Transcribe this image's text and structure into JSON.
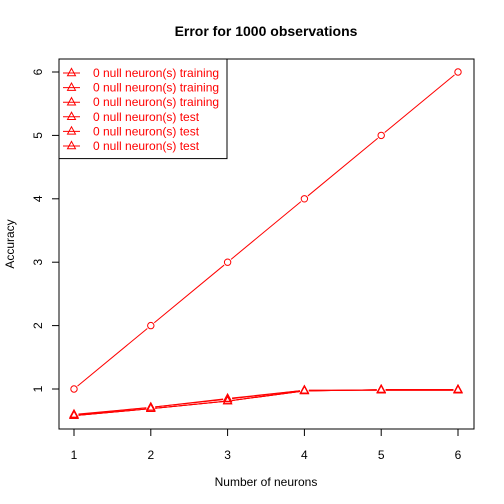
{
  "chart_data": {
    "type": "line",
    "title": "Error for 1000 observations",
    "xlabel": "Number of neurons",
    "ylabel": "Accuracy",
    "x": [
      1,
      2,
      3,
      4,
      5,
      6
    ],
    "xlim": [
      1,
      6
    ],
    "ylim": [
      0.6,
      6
    ],
    "xticks": [
      "1",
      "2",
      "3",
      "4",
      "5",
      "6"
    ],
    "yticks": [
      "1",
      "2",
      "3",
      "4",
      "5",
      "6"
    ],
    "grid": false,
    "legend_position": "top-left",
    "color": "#ff0000",
    "series": [
      {
        "name": "0 null neuron(s) training",
        "marker": "circle",
        "values": [
          1,
          2,
          3,
          4,
          5,
          6
        ]
      },
      {
        "name": "0 null neuron(s) training",
        "marker": "triangle",
        "values": [
          0.6,
          0.71,
          0.85,
          0.98,
          0.98,
          0.98
        ]
      },
      {
        "name": "0 null neuron(s) training",
        "marker": "triangle",
        "values": [
          0.59,
          0.71,
          0.84,
          0.98,
          0.98,
          0.98
        ]
      },
      {
        "name": "0 null neuron(s) test",
        "marker": "triangle",
        "values": [
          0.58,
          0.69,
          0.81,
          0.97,
          0.99,
          0.99
        ]
      },
      {
        "name": "0 null neuron(s) test",
        "marker": "triangle",
        "values": [
          0.58,
          0.69,
          0.81,
          0.97,
          0.99,
          0.99
        ]
      },
      {
        "name": "0 null neuron(s) test",
        "marker": "triangle",
        "values": [
          0.58,
          0.69,
          0.81,
          0.97,
          0.99,
          0.99
        ]
      }
    ]
  }
}
